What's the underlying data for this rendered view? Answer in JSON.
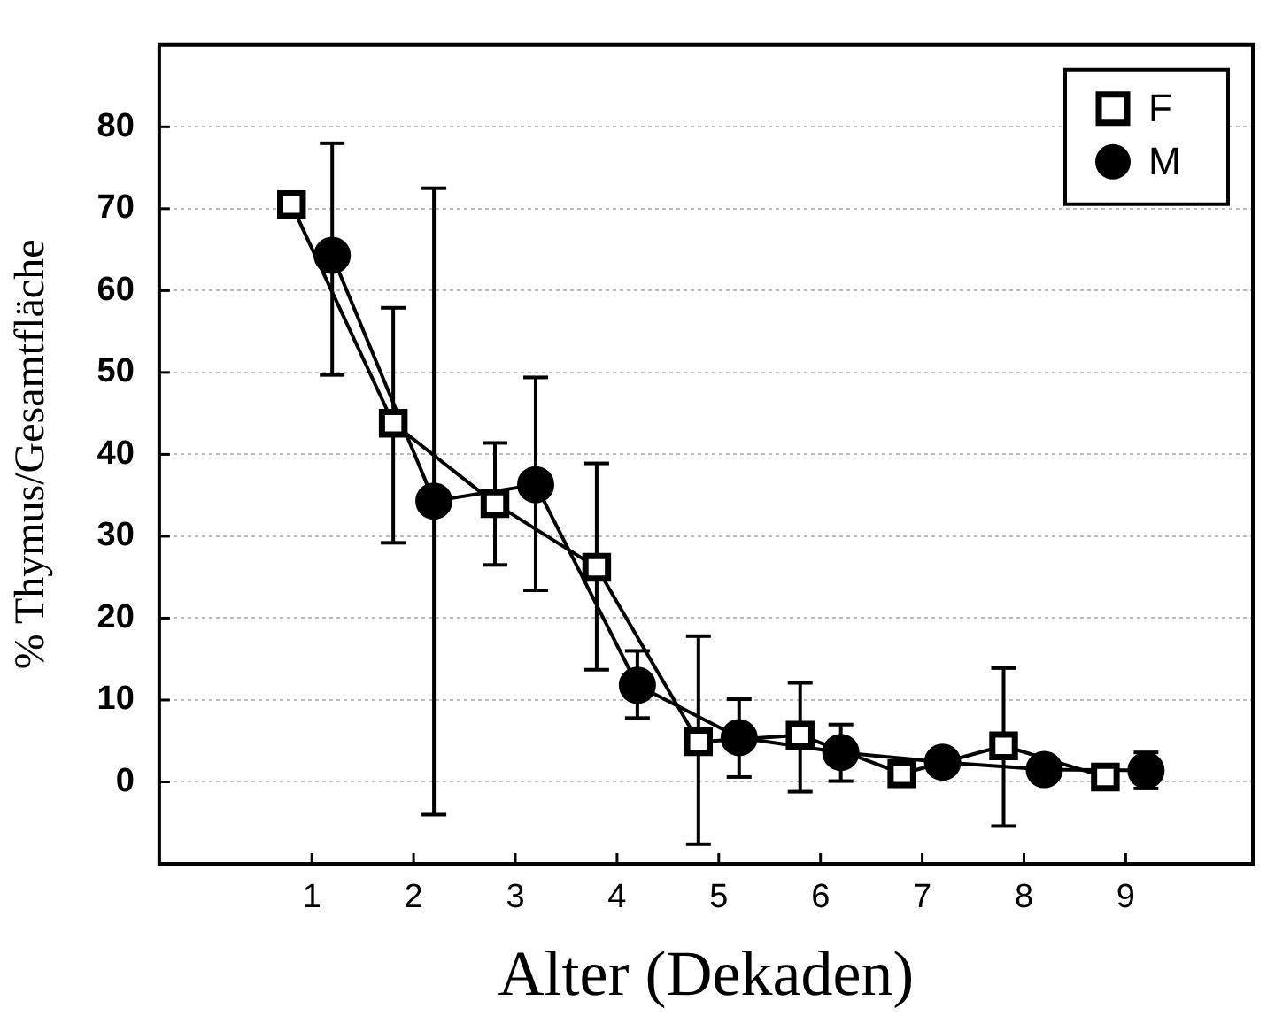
{
  "chart_data": {
    "type": "line",
    "xlabel": "Alter (Dekaden)",
    "ylabel": "% Thymus/Gesamtfläche",
    "xlim": [
      -0.5,
      10.25
    ],
    "xticks": [
      1,
      2,
      3,
      4,
      5,
      6,
      7,
      8,
      9
    ],
    "ylim": [
      -10,
      90
    ],
    "yticks": [
      0,
      10,
      20,
      30,
      40,
      50,
      60,
      70,
      80
    ],
    "grid": "y",
    "legend": "top right",
    "line_style": "solid",
    "series": [
      {
        "name": "F",
        "color": "#000000",
        "marker": "square",
        "x": [
          0.8,
          1.8,
          2.8,
          3.8,
          4.8,
          5.8,
          6.8,
          7.8,
          8.8
        ],
        "values": [
          70.5,
          43.8,
          34.0,
          26.2,
          4.9,
          5.7,
          1.0,
          4.4,
          0.6
        ],
        "errors": [
          null,
          [
            29.2,
            57.9
          ],
          [
            26.5,
            41.4
          ],
          [
            13.7,
            38.9
          ],
          [
            -7.6,
            17.8
          ],
          [
            -1.2,
            12.1
          ],
          null,
          [
            -5.4,
            13.9
          ],
          null
        ]
      },
      {
        "name": "M",
        "color": "#000000",
        "marker": "circle",
        "x": [
          1.2,
          2.2,
          3.2,
          4.2,
          5.2,
          6.2,
          7.2,
          8.2,
          9.2
        ],
        "values": [
          64.3,
          34.3,
          36.3,
          11.8,
          5.4,
          3.6,
          2.4,
          1.5,
          1.4
        ],
        "errors": [
          [
            49.7,
            78.0
          ],
          [
            -4.0,
            72.5
          ],
          [
            23.4,
            49.4
          ],
          [
            7.8,
            16.0
          ],
          [
            0.6,
            10.1
          ],
          [
            0.1,
            7.0
          ],
          null,
          null,
          [
            -0.8,
            3.6
          ]
        ]
      }
    ]
  }
}
